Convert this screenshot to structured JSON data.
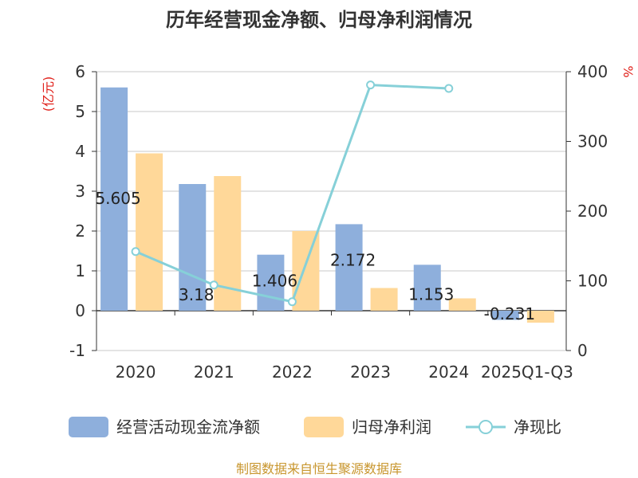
{
  "chart_data": {
    "type": "bar",
    "title": "历年经营现金净额、归母净利润情况",
    "categories": [
      "2020",
      "2021",
      "2022",
      "2023",
      "2024",
      "2025Q1-Q3"
    ],
    "series": [
      {
        "name": "经营活动现金流净额",
        "type": "bar",
        "axis": "left",
        "color": "#8eafdc",
        "values": [
          5.605,
          3.18,
          1.406,
          2.172,
          1.153,
          -0.231
        ],
        "labels": [
          "5.605",
          "3.18",
          "1.406",
          "2.172",
          "1.153",
          "-0.231"
        ]
      },
      {
        "name": "归母净利润",
        "type": "bar",
        "axis": "left",
        "color": "#ffd899",
        "values": [
          3.95,
          3.38,
          2.0,
          0.57,
          0.31,
          -0.3
        ]
      },
      {
        "name": "净现比",
        "type": "line",
        "axis": "right",
        "color": "#86d0d8",
        "values": [
          142,
          94,
          70,
          381,
          376,
          null
        ]
      }
    ],
    "left_axis": {
      "unit": "(亿元)",
      "min": -1,
      "max": 6,
      "ticks": [
        "6",
        "5",
        "4",
        "3",
        "2",
        "1",
        "0",
        "-1"
      ]
    },
    "right_axis": {
      "unit": "%",
      "min": 0,
      "max": 400,
      "ticks": [
        "400",
        "300",
        "200",
        "100",
        "0"
      ]
    },
    "grid": true,
    "legend_position": "bottom"
  },
  "footer": {
    "source": "制图数据来自恒生聚源数据库"
  }
}
